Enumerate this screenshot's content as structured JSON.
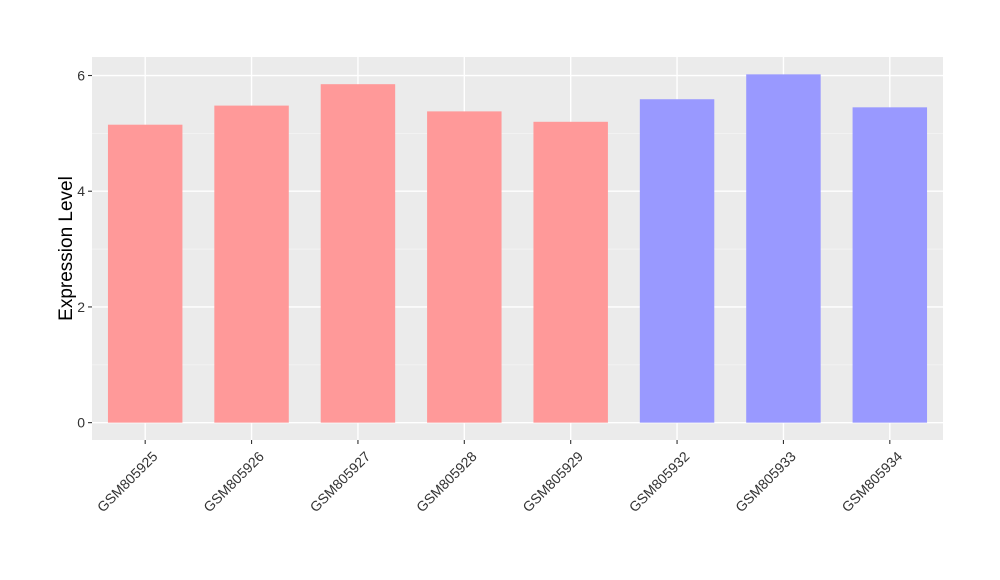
{
  "chart_data": {
    "type": "bar",
    "title": "",
    "xlabel": "",
    "ylabel": "Expression Level",
    "categories": [
      "GSM805925",
      "GSM805926",
      "GSM805927",
      "GSM805928",
      "GSM805929",
      "GSM805932",
      "GSM805933",
      "GSM805934"
    ],
    "values": [
      5.15,
      5.48,
      5.85,
      5.38,
      5.2,
      5.59,
      6.02,
      5.45
    ],
    "bar_colors": [
      "#ff9999",
      "#ff9999",
      "#ff9999",
      "#ff9999",
      "#ff9999",
      "#9999ff",
      "#9999ff",
      "#9999ff"
    ],
    "yticks": [
      0,
      2,
      4,
      6
    ],
    "ylim": [
      -0.3,
      6.32
    ],
    "grid": true,
    "legend": "none",
    "colors": {
      "panel_background": "#ebebeb",
      "grid_major": "#ffffff",
      "grid_minor": "#f4f4f4"
    }
  }
}
